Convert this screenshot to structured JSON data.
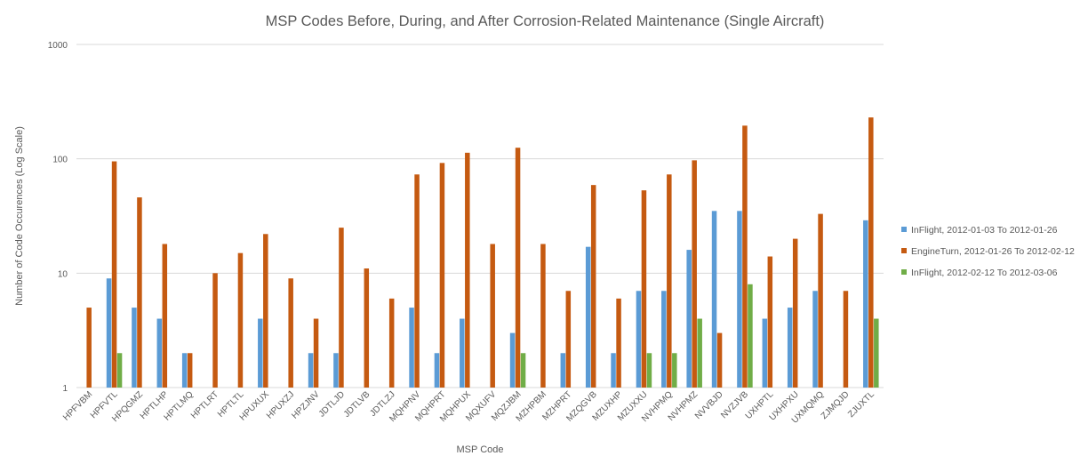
{
  "chart_data": {
    "type": "bar",
    "title": "MSP Codes Before, During, and After Corrosion-Related Maintenance (Single Aircraft)",
    "xlabel": "MSP Code",
    "ylabel": "Number of Code Occurences (Log Scale)",
    "yscale": "log",
    "ylim": [
      1,
      1000
    ],
    "yticks": [
      "1",
      "10",
      "100",
      "1000"
    ],
    "grid": true,
    "legend_position": "right",
    "categories": [
      "HPFVBM",
      "HPFVTL",
      "HPQGMZ",
      "HPTLHP",
      "HPTLMQ",
      "HPTLRT",
      "HPTLTL",
      "HPUXUX",
      "HPUXZJ",
      "HPZJNV",
      "JDTLJD",
      "JDTLVB",
      "JDTLZJ",
      "MQHPNV",
      "MQHPRT",
      "MQHPUX",
      "MQXUFV",
      "MQZJBM",
      "MZHPBM",
      "MZHPRT",
      "MZQGVB",
      "MZUXHP",
      "MZUXXU",
      "NVHPMQ",
      "NVHPMZ",
      "NVVBJD",
      "NVZJVB",
      "UXHPTL",
      "UXHPXU",
      "UXMQMQ",
      "ZJMQJD",
      "ZJUXTL"
    ],
    "series": [
      {
        "name": "InFlight, 2012-01-03 To 2012-01-26",
        "color": "#5B9BD5",
        "values": [
          null,
          9,
          5,
          4,
          2,
          null,
          null,
          4,
          null,
          2,
          2,
          null,
          null,
          5,
          2,
          4,
          null,
          3,
          null,
          2,
          17,
          2,
          7,
          7,
          16,
          35,
          35,
          4,
          5,
          7,
          null,
          29
        ]
      },
      {
        "name": "EngineTurn, 2012-01-26 To 2012-02-12",
        "color": "#C55A11",
        "values": [
          5,
          95,
          46,
          18,
          2,
          10,
          15,
          22,
          9,
          4,
          25,
          11,
          6,
          73,
          92,
          113,
          18,
          125,
          18,
          7,
          59,
          6,
          53,
          73,
          97,
          3,
          195,
          14,
          20,
          33,
          7,
          230
        ]
      },
      {
        "name": "InFlight, 2012-02-12 To 2012-03-06",
        "color": "#70AD47",
        "values": [
          null,
          2,
          null,
          null,
          null,
          null,
          null,
          null,
          null,
          null,
          null,
          null,
          null,
          null,
          null,
          null,
          null,
          2,
          null,
          null,
          null,
          null,
          2,
          2,
          4,
          null,
          8,
          null,
          null,
          null,
          null,
          4
        ]
      }
    ]
  }
}
